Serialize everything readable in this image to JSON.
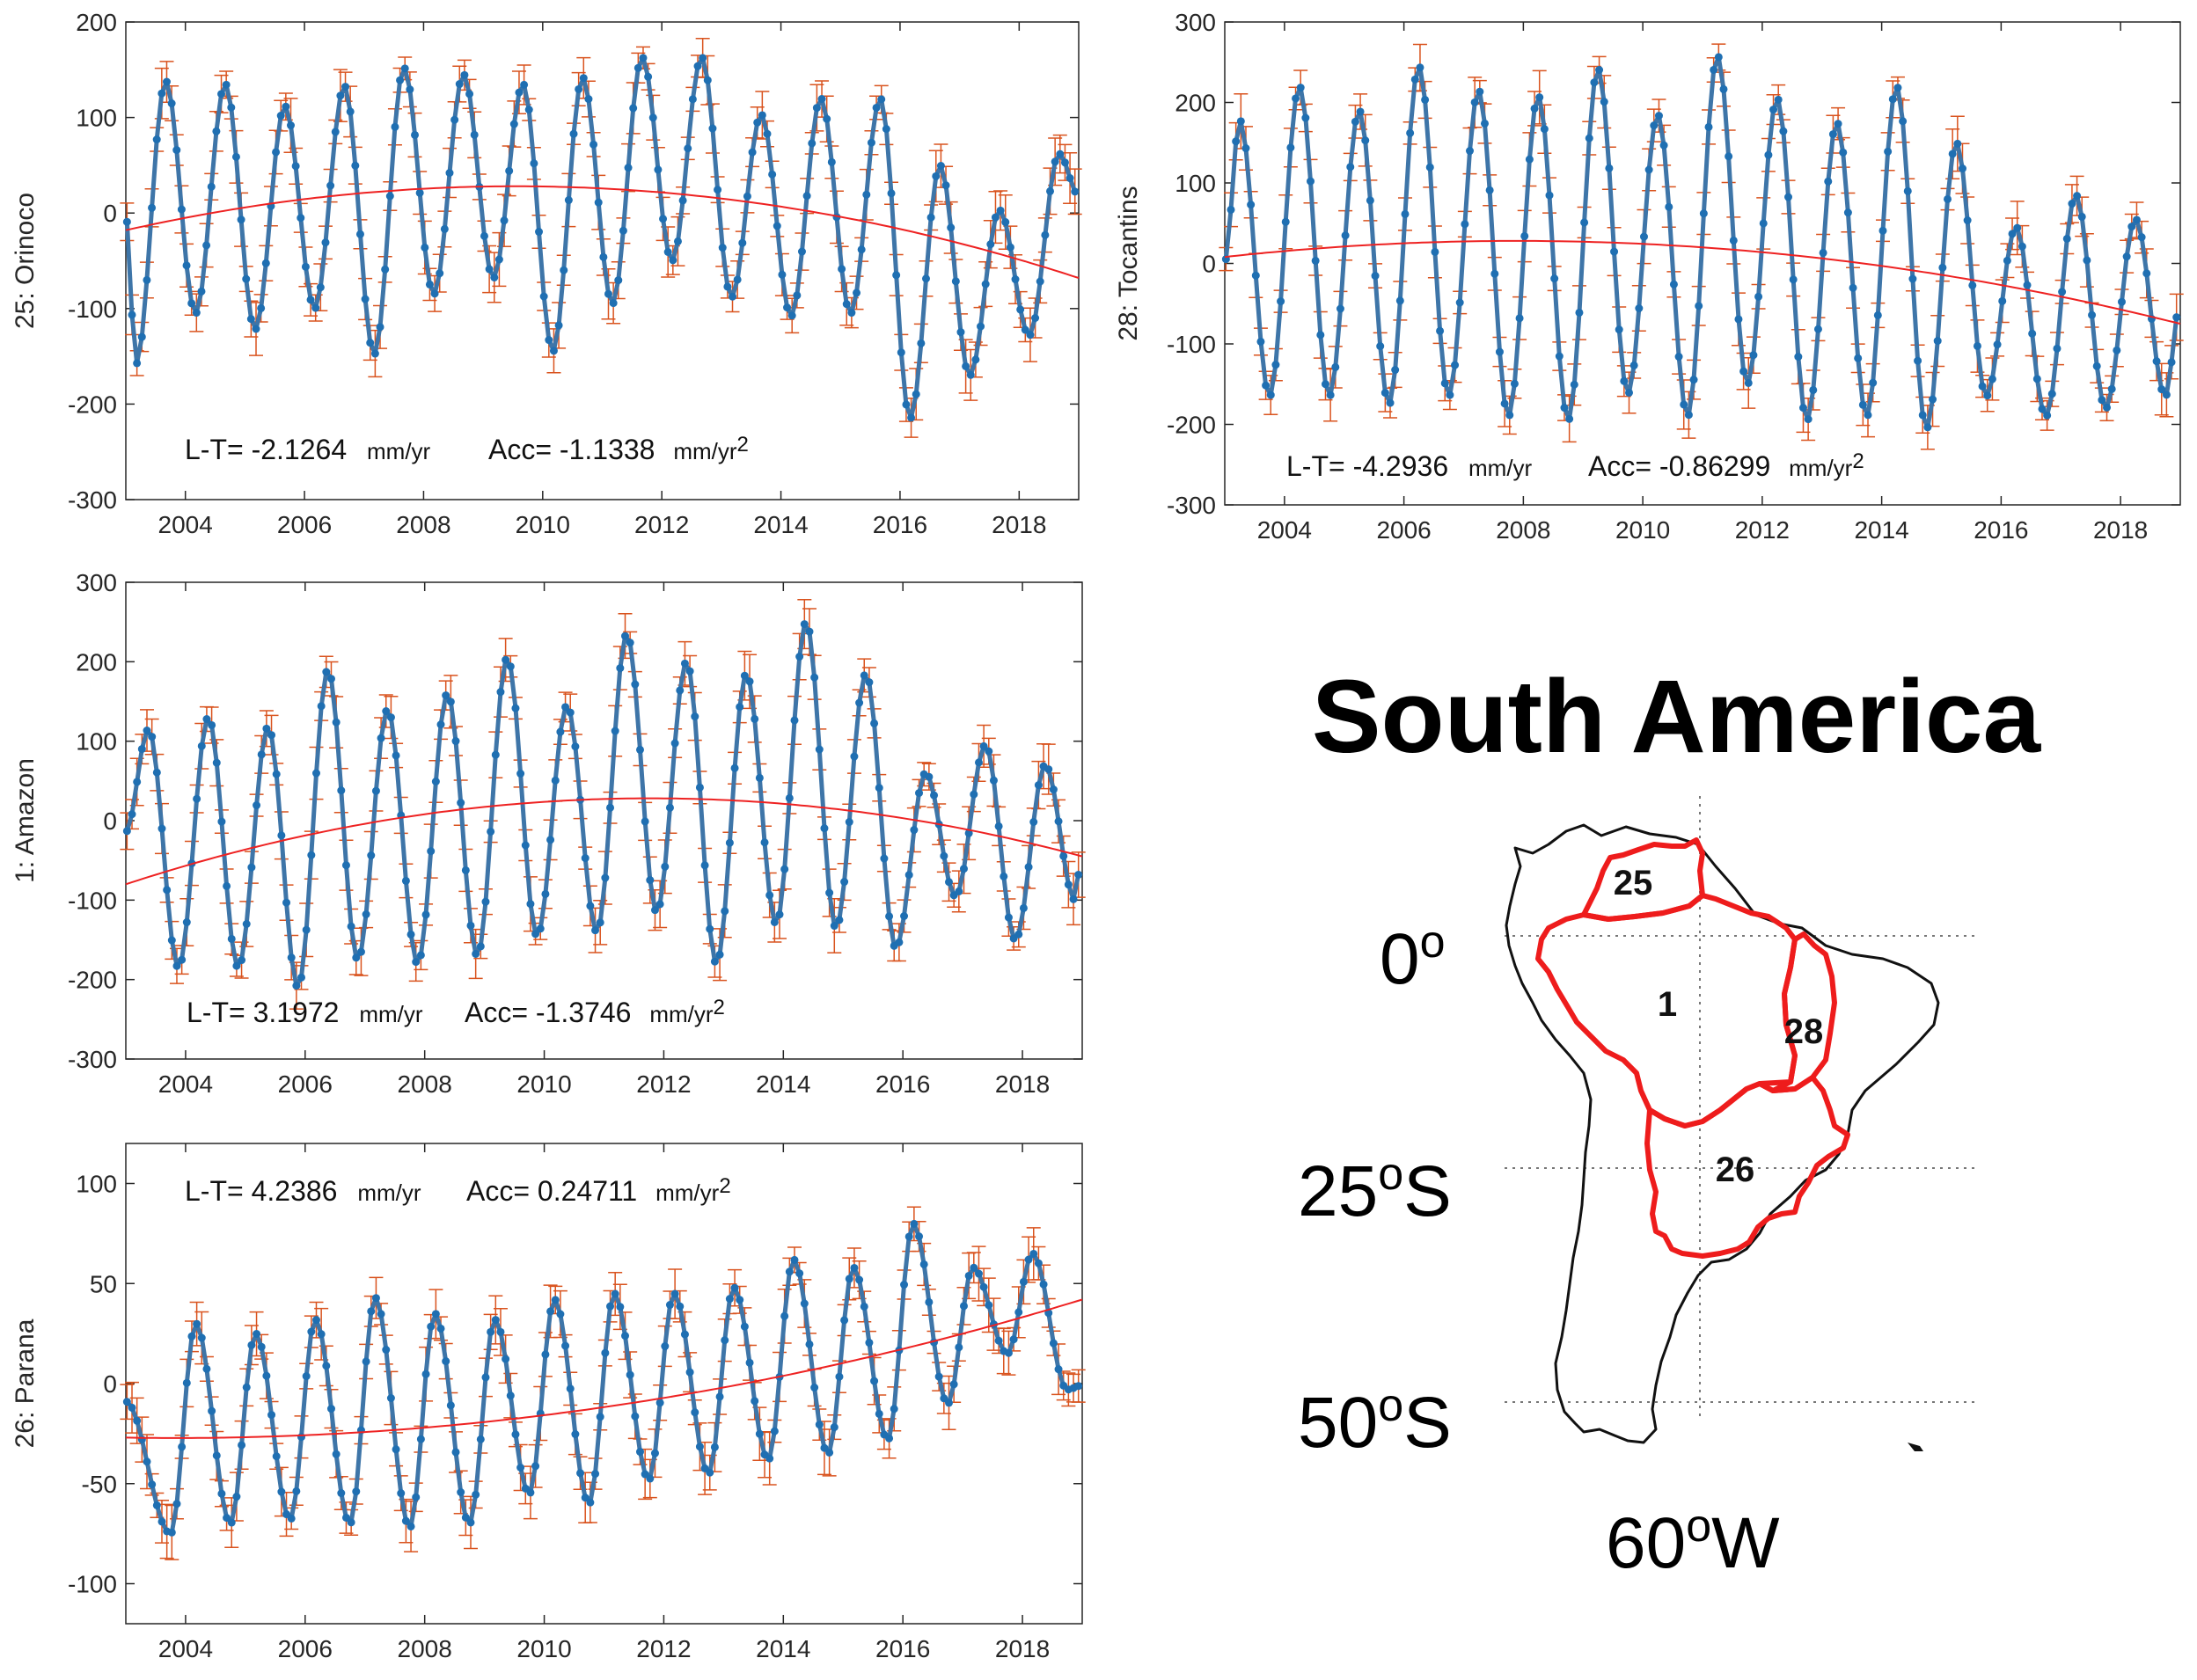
{
  "figure_title": "South America",
  "colors": {
    "series": "#3e75a8",
    "points": "#1f6fb2",
    "error": "#d9531e",
    "trend": "#ee2222",
    "basin_outline": "#ee1c1c",
    "axis": "#262626"
  },
  "map": {
    "lat_labels": [
      {
        "deg": "0",
        "suffix": ""
      },
      {
        "deg": "25",
        "suffix": "S"
      },
      {
        "deg": "50",
        "suffix": "S"
      }
    ],
    "lon_label": {
      "deg": "60",
      "suffix": "W"
    },
    "degree_symbol": "o",
    "basin_labels": [
      "25",
      "1",
      "28",
      "26"
    ]
  },
  "chart_data": [
    {
      "type": "line",
      "id": "orinoco",
      "ylabel": "25: Orinoco",
      "xlim": [
        2003,
        2019
      ],
      "ylim": [
        -300,
        200
      ],
      "yticks": [
        -300,
        -200,
        -100,
        0,
        100,
        200
      ],
      "xticks": [
        2004,
        2006,
        2008,
        2010,
        2012,
        2014,
        2016,
        2018
      ],
      "tick_labels_x": [
        "2004",
        "2006",
        "2008",
        "2010",
        "2012",
        "2014",
        "2016",
        "2018"
      ],
      "tick_labels_y": [
        "-300",
        "-200",
        "-100",
        "0",
        "100",
        "200"
      ],
      "annotation": {
        "lt_label": "L-T=",
        "lt_value": "-2.1264",
        "lt_unit": "mm/yr",
        "acc_label": "Acc=",
        "acc_value": "-1.1338",
        "acc_unit": "mm/yr",
        "acc_exp": "2"
      },
      "series": [
        {
          "name": "peaks",
          "x": [
            2003.67,
            2004.67,
            2005.67,
            2006.67,
            2007.67,
            2008.67,
            2009.67,
            2010.67,
            2011.67,
            2012.67,
            2013.67,
            2014.67,
            2015.67,
            2016.67,
            2017.67,
            2018.67
          ],
          "values": [
            138,
            135,
            112,
            133,
            152,
            145,
            135,
            142,
            163,
            163,
            103,
            120,
            120,
            50,
            3,
            62
          ]
        },
        {
          "name": "troughs",
          "x": [
            2003.17,
            2004.17,
            2005.17,
            2006.17,
            2007.17,
            2008.17,
            2009.17,
            2010.17,
            2011.17,
            2012.17,
            2013.17,
            2014.17,
            2015.17,
            2016.17,
            2017.17,
            2018.17
          ],
          "values": [
            -158,
            -105,
            -122,
            -100,
            -148,
            -85,
            -68,
            -145,
            -95,
            -50,
            -88,
            -108,
            -105,
            -215,
            -170,
            -128
          ]
        },
        {
          "name": "trend",
          "x": [
            2003,
            2009.5,
            2019
          ],
          "values": [
            -18,
            28,
            -68
          ]
        }
      ]
    },
    {
      "type": "line",
      "id": "tocantins",
      "ylabel": "28: Tocantins",
      "xlim": [
        2003,
        2019
      ],
      "ylim": [
        -300,
        300
      ],
      "yticks": [
        -300,
        -200,
        -100,
        0,
        100,
        200,
        300
      ],
      "xticks": [
        2004,
        2006,
        2008,
        2010,
        2012,
        2014,
        2016,
        2018
      ],
      "tick_labels_x": [
        "2004",
        "2006",
        "2008",
        "2010",
        "2012",
        "2014",
        "2016",
        "2018"
      ],
      "tick_labels_y": [
        "-300",
        "-200",
        "-100",
        "0",
        "100",
        "200",
        "300"
      ],
      "annotation": {
        "lt_label": "L-T=",
        "lt_value": "-4.2936",
        "lt_unit": "mm/yr",
        "acc_label": "Acc=",
        "acc_value": "-0.86299",
        "acc_unit": "mm/yr",
        "acc_exp": "2"
      },
      "series": [
        {
          "name": "peaks",
          "x": [
            2003.25,
            2004.25,
            2005.25,
            2006.25,
            2007.25,
            2008.25,
            2009.25,
            2010.25,
            2011.25,
            2012.25,
            2013.25,
            2014.25,
            2015.25,
            2016.25,
            2017.25,
            2018.25
          ],
          "values": [
            178,
            220,
            190,
            245,
            215,
            208,
            242,
            185,
            258,
            205,
            175,
            220,
            150,
            45,
            85,
            55
          ]
        },
        {
          "name": "troughs",
          "x": [
            2003.75,
            2004.75,
            2005.75,
            2006.75,
            2007.75,
            2008.75,
            2009.75,
            2010.75,
            2011.75,
            2012.75,
            2013.75,
            2014.75,
            2015.75,
            2016.75,
            2017.75,
            2018.75
          ],
          "values": [
            -165,
            -165,
            -175,
            -165,
            -190,
            -195,
            -162,
            -190,
            -150,
            -195,
            -190,
            -205,
            -165,
            -190,
            -180,
            -165
          ]
        },
        {
          "name": "trend",
          "x": [
            2003,
            2008,
            2019
          ],
          "values": [
            8,
            28,
            -75
          ]
        }
      ]
    },
    {
      "type": "line",
      "id": "amazon",
      "ylabel": "1: Amazon",
      "xlim": [
        2003,
        2019
      ],
      "ylim": [
        -300,
        300
      ],
      "yticks": [
        -300,
        -200,
        -100,
        0,
        100,
        200,
        300
      ],
      "xticks": [
        2004,
        2006,
        2008,
        2010,
        2012,
        2014,
        2016,
        2018
      ],
      "tick_labels_x": [
        "2004",
        "2006",
        "2008",
        "2010",
        "2012",
        "2014",
        "2016",
        "2018"
      ],
      "tick_labels_y": [
        "-300",
        "-200",
        "-100",
        "0",
        "100",
        "200",
        "300"
      ],
      "annotation": {
        "lt_label": "L-T=",
        "lt_value": "3.1972",
        "lt_unit": "mm/yr",
        "acc_label": "Acc=",
        "acc_value": "-1.3746",
        "acc_unit": "mm/yr",
        "acc_exp": "2"
      },
      "series": [
        {
          "name": "peaks",
          "x": [
            2003.38,
            2004.38,
            2005.38,
            2006.38,
            2007.38,
            2008.38,
            2009.38,
            2010.38,
            2011.38,
            2012.38,
            2013.38,
            2014.38,
            2015.38,
            2016.38,
            2017.38,
            2018.38
          ],
          "values": [
            115,
            130,
            118,
            190,
            140,
            160,
            205,
            145,
            235,
            200,
            185,
            250,
            185,
            60,
            95,
            70
          ]
        },
        {
          "name": "troughs",
          "x": [
            2003.88,
            2004.88,
            2005.88,
            2006.88,
            2007.88,
            2008.88,
            2009.88,
            2010.88,
            2011.88,
            2012.88,
            2013.88,
            2014.88,
            2015.88,
            2016.88,
            2017.88,
            2018.88
          ],
          "values": [
            -185,
            -185,
            -210,
            -175,
            -180,
            -170,
            -145,
            -140,
            -115,
            -180,
            -130,
            -135,
            -160,
            -95,
            -150,
            -100
          ]
        },
        {
          "name": "trend",
          "x": [
            2003,
            2011.5,
            2019
          ],
          "values": [
            -80,
            28,
            -45
          ]
        }
      ]
    },
    {
      "type": "line",
      "id": "parana",
      "ylabel": "26: Parana",
      "xlim": [
        2003,
        2019
      ],
      "ylim": [
        -120,
        120
      ],
      "yticks": [
        -100,
        -50,
        0,
        50,
        100
      ],
      "xticks": [
        2004,
        2006,
        2008,
        2010,
        2012,
        2014,
        2016,
        2018
      ],
      "tick_labels_x": [
        "2004",
        "2006",
        "2008",
        "2010",
        "2012",
        "2014",
        "2016",
        "2018"
      ],
      "tick_labels_y": [
        "-100",
        "-50",
        "0",
        "50",
        "100"
      ],
      "annotation": {
        "lt_label": "L-T=",
        "lt_value": "4.2386",
        "lt_unit": "mm/yr",
        "acc_label": "Acc=",
        "acc_value": "0.24711",
        "acc_unit": "mm/yr",
        "acc_exp": "2"
      },
      "series": [
        {
          "name": "peaks",
          "x": [
            2004.17,
            2005.17,
            2006.17,
            2007.17,
            2008.17,
            2009.17,
            2010.17,
            2011.17,
            2012.17,
            2013.17,
            2014.17,
            2015.17,
            2016.17,
            2017.17,
            2018.17
          ],
          "values": [
            30,
            25,
            32,
            43,
            35,
            32,
            42,
            45,
            45,
            48,
            62,
            58,
            80,
            58,
            65
          ]
        },
        {
          "name": "troughs",
          "x": [
            2003.75,
            2004.75,
            2005.75,
            2006.75,
            2007.75,
            2008.75,
            2009.75,
            2010.75,
            2011.75,
            2012.75,
            2013.75,
            2014.75,
            2015.75,
            2016.75,
            2017.75,
            2018.75
          ],
          "values": [
            -75,
            -70,
            -68,
            -70,
            -72,
            -70,
            -55,
            -60,
            -48,
            -45,
            -38,
            -35,
            -28,
            -10,
            15,
            -3
          ]
        },
        {
          "name": "trend",
          "x": [
            2003,
            2008,
            2019
          ],
          "values": [
            -27,
            -22,
            42
          ]
        }
      ]
    }
  ]
}
